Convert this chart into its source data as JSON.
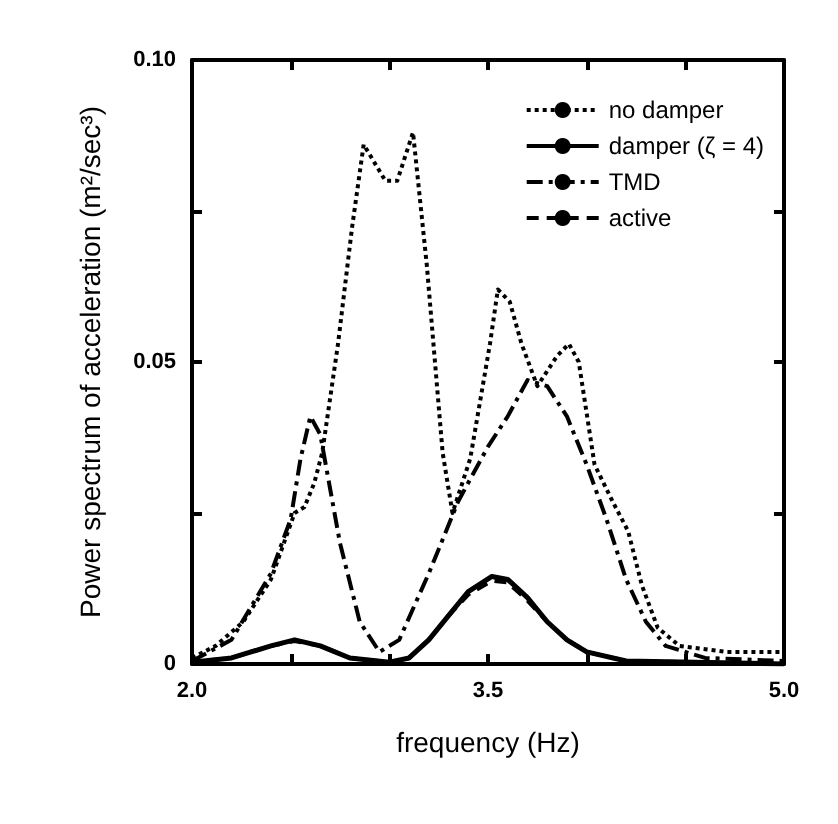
{
  "chart_data": {
    "type": "line",
    "xlabel": "frequency (Hz)",
    "ylabel": "Power spectrum of acceleration (m²/sec³)",
    "xlim": [
      2,
      5
    ],
    "ylim": [
      0,
      0.1
    ],
    "xticks": [
      {
        "value": 2,
        "label": "2.0"
      },
      {
        "value": 2.5,
        "label": null
      },
      {
        "value": 3,
        "label": null
      },
      {
        "value": 3.5,
        "label": "3.5"
      },
      {
        "value": 4,
        "label": null
      },
      {
        "value": 4.5,
        "label": null
      },
      {
        "value": 5,
        "label": "5.0"
      }
    ],
    "yticks": [
      0,
      {
        "value": 0.025,
        "label": null
      },
      0.05,
      {
        "value": 0.075,
        "label": null
      },
      {
        "value": 0.1,
        "label": "0.10"
      }
    ],
    "grid": false,
    "legend": "top right",
    "marker": "none",
    "series": [
      {
        "name": "no damper",
        "color": "#000000",
        "line_style": "dotted",
        "x": [
          2.0,
          2.12,
          2.26,
          2.4,
          2.52,
          2.57,
          2.62,
          2.66,
          2.74,
          2.81,
          2.87,
          2.98,
          3.04,
          3.12,
          3.19,
          3.27,
          3.32,
          3.41,
          3.51,
          3.55,
          3.61,
          3.67,
          3.75,
          3.85,
          3.91,
          3.96,
          4.04,
          4.13,
          4.21,
          4.28,
          4.36,
          4.47,
          4.71,
          5.0
        ],
        "values": [
          0.001,
          0.003,
          0.007,
          0.014,
          0.025,
          0.026,
          0.03,
          0.035,
          0.053,
          0.072,
          0.086,
          0.08,
          0.08,
          0.088,
          0.066,
          0.035,
          0.025,
          0.034,
          0.053,
          0.062,
          0.06,
          0.053,
          0.046,
          0.051,
          0.053,
          0.05,
          0.033,
          0.027,
          0.022,
          0.013,
          0.006,
          0.003,
          0.002,
          0.002
        ]
      },
      {
        "name": "damper (ζ = 4)",
        "color": "#000000",
        "line_style": "solid",
        "x": [
          2.0,
          2.2,
          2.4,
          2.52,
          2.65,
          2.8,
          3.0,
          3.1,
          3.2,
          3.3,
          3.4,
          3.52,
          3.6,
          3.7,
          3.8,
          3.9,
          4.0,
          4.2,
          5.0
        ],
        "values": [
          0.0003,
          0.001,
          0.003,
          0.004,
          0.003,
          0.001,
          0.0003,
          0.001,
          0.004,
          0.008,
          0.012,
          0.0145,
          0.014,
          0.011,
          0.007,
          0.004,
          0.002,
          0.0005,
          0
        ]
      },
      {
        "name": "TMD",
        "color": "#000000",
        "line_style": "dashdot",
        "x": [
          2.0,
          2.2,
          2.4,
          2.5,
          2.55,
          2.6,
          2.65,
          2.75,
          2.85,
          2.95,
          3.05,
          3.2,
          3.35,
          3.5,
          3.6,
          3.7,
          3.8,
          3.9,
          4.0,
          4.1,
          4.2,
          4.3,
          4.4,
          4.6,
          5.0
        ],
        "values": [
          0.0005,
          0.004,
          0.015,
          0.024,
          0.034,
          0.041,
          0.038,
          0.02,
          0.007,
          0.002,
          0.004,
          0.015,
          0.027,
          0.036,
          0.041,
          0.047,
          0.046,
          0.041,
          0.033,
          0.024,
          0.014,
          0.007,
          0.003,
          0.001,
          0.0005
        ]
      },
      {
        "name": "active",
        "color": "#000000",
        "line_style": "dashed",
        "x": [
          2.0,
          2.2,
          2.4,
          2.52,
          2.65,
          2.8,
          3.0,
          3.1,
          3.2,
          3.3,
          3.4,
          3.52,
          3.6,
          3.7,
          3.8,
          3.9,
          4.0,
          4.2,
          5.0
        ],
        "values": [
          0.0003,
          0.001,
          0.003,
          0.0038,
          0.003,
          0.001,
          0.0003,
          0.001,
          0.004,
          0.008,
          0.0115,
          0.0138,
          0.0135,
          0.0105,
          0.007,
          0.004,
          0.002,
          0.0005,
          0
        ]
      }
    ]
  }
}
